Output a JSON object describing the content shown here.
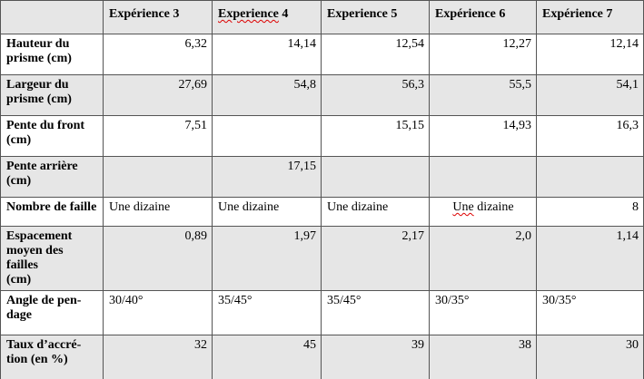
{
  "table": {
    "header": [
      null,
      "Expérience 3",
      "Experience 4",
      "Experience 5",
      "Expérience 6",
      "Expérience 7"
    ],
    "rows": [
      [
        "Hauteur du\nprisme (cm)",
        "6,32",
        "14,14",
        "12,54",
        "12,27",
        "12,14"
      ],
      [
        "Largeur du\nprisme (cm)",
        "27,69",
        "54,8",
        "56,3",
        "55,5",
        "54,1"
      ],
      [
        "Pente du front\n(cm)",
        "7,51",
        null,
        "15,15",
        "14,93",
        "16,3"
      ],
      [
        "Pente arrière\n(cm)",
        null,
        "17,15",
        null,
        null,
        null
      ],
      [
        "Nombre de faille",
        "Une dizaine",
        "Une dizaine",
        "Une dizaine",
        "Une dizaine",
        "8"
      ],
      [
        "Espacement\nmoyen des failles\n(cm)",
        "0,89",
        "1,97",
        "2,17",
        "2,0",
        "1,14"
      ],
      [
        "Angle de pen-\ndage",
        "30/40°",
        "35/45°",
        "35/45°",
        "30/35°",
        "30/35°"
      ],
      [
        "Taux d’accré-\ntion (en %)",
        "32",
        "45",
        "39",
        "38",
        "30"
      ]
    ]
  }
}
